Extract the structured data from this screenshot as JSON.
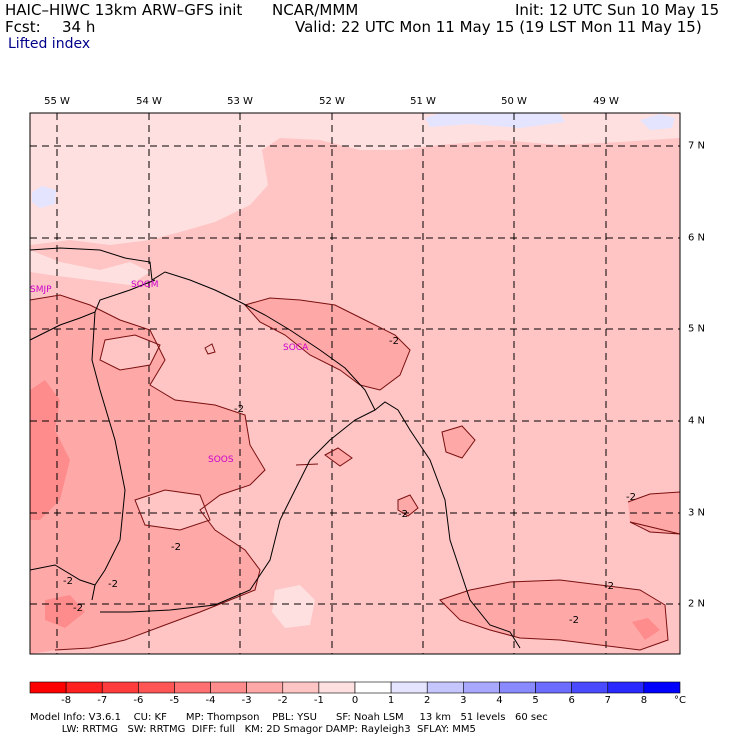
{
  "header": {
    "model": "HAIC–HIWC 13km ARW–GFS init",
    "org": "NCAR/MMM",
    "init": "Init: 12 UTC Sun 10 May 15",
    "fcst_label": "Fcst:",
    "fcst_value": "34 h",
    "valid": "Valid: 22 UTC Mon 11 May 15 (19 LST Mon 11 May 15)",
    "field": "Lifted index"
  },
  "map": {
    "lon_labels": [
      "55 W",
      "54 W",
      "53 W",
      "52 W",
      "51 W",
      "50 W",
      "49 W"
    ],
    "lat_labels": [
      "7 N",
      "6 N",
      "5 N",
      "4 N",
      "3 N",
      "2 N"
    ],
    "stations": [
      "SMJP",
      "SOGM",
      "SOCA",
      "SOOS"
    ],
    "contour_labels": [
      "-2",
      "-2",
      "-2",
      "-2",
      "-2",
      "-2",
      "-2",
      "-2",
      "-2",
      "-2"
    ]
  },
  "colorbar": {
    "ticks": [
      "-8",
      "-7",
      "-6",
      "-5",
      "-4",
      "-3",
      "-2",
      "-1",
      "0",
      "1",
      "2",
      "3",
      "4",
      "5",
      "6",
      "7",
      "8"
    ],
    "unit": "°C",
    "colors": [
      "#ff0000",
      "#ff2020",
      "#ff3c3c",
      "#ff5555",
      "#ff7070",
      "#ff8c8c",
      "#ffa8a8",
      "#ffc4c4",
      "#ffe0e0",
      "#ffffff",
      "#e4e4ff",
      "#c6c6ff",
      "#a8a8ff",
      "#8a8aff",
      "#6c6cff",
      "#4a4aff",
      "#2828ff",
      "#0000ff"
    ]
  },
  "footer": {
    "line1": "Model Info: V3.6.1    CU: KF      MP: Thompson    PBL: YSU      SF: Noah LSM     13 km   51 levels   60 sec",
    "line2": "          LW: RRTMG   SW: RRTMG  DIFF: full   KM: 2D Smagor DAMP: Rayleigh3  SFLAY: MM5"
  }
}
